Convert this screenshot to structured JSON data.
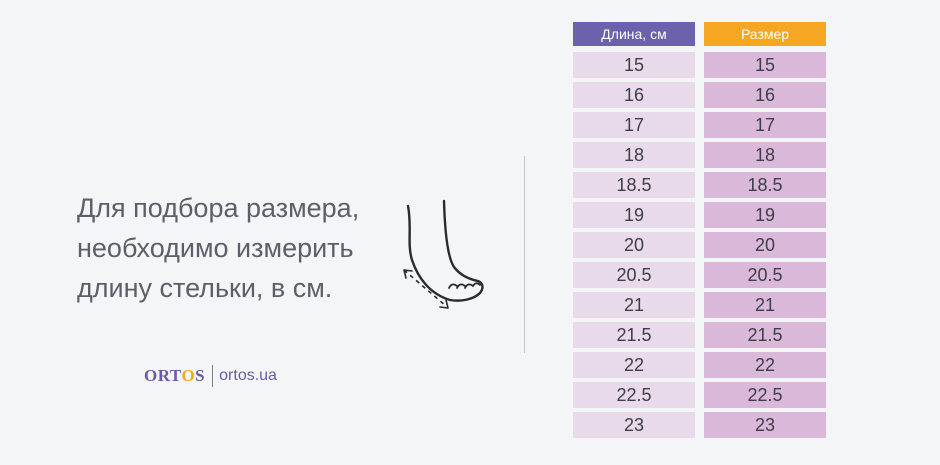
{
  "instruction": {
    "lines": [
      "Для подбора размера,",
      "необходимо измерить",
      "длину стельки, в см."
    ]
  },
  "brand": {
    "logo_prefix": "ORT",
    "logo_o": "O",
    "logo_suffix": "S",
    "site": "ortos.ua"
  },
  "size_table": {
    "length_header": "Длина, см",
    "size_header": "Размер",
    "lengths": [
      "15",
      "16",
      "17",
      "18",
      "18.5",
      "19",
      "20",
      "20.5",
      "21",
      "21.5",
      "22",
      "22.5",
      "23"
    ],
    "sizes": [
      "15",
      "16",
      "17",
      "18",
      "18.5",
      "19",
      "20",
      "20.5",
      "21",
      "21.5",
      "22",
      "22.5",
      "23"
    ]
  },
  "colors": {
    "length_header_bg": "#6b62ad",
    "size_header_bg": "#f5a623",
    "length_cell_bg": "#e8d9eb",
    "size_cell_bg": "#d9b8da",
    "brand": "#6a5aa8"
  }
}
